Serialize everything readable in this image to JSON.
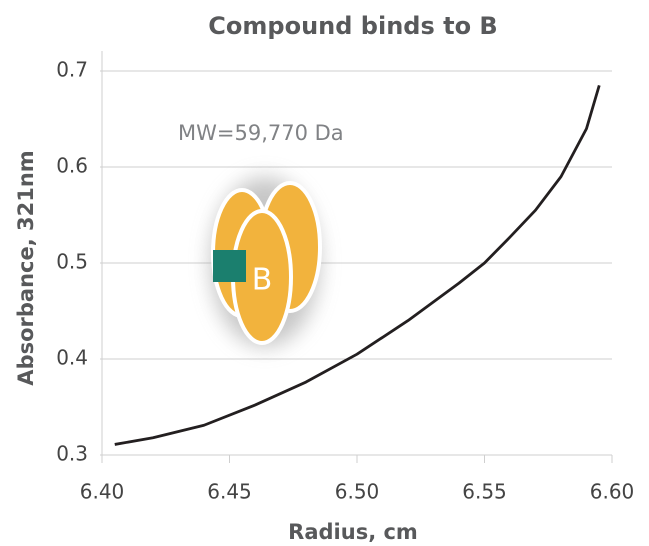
{
  "chart_data": {
    "type": "line",
    "title": "Compound binds to B",
    "x_label": "Radius, cm",
    "y_label": "Absorbance, 321nm",
    "x": [
      6.405,
      6.42,
      6.44,
      6.46,
      6.48,
      6.5,
      6.52,
      6.54,
      6.55,
      6.56,
      6.57,
      6.58,
      6.59,
      6.595
    ],
    "series": [
      {
        "color": "#231f20",
        "values": [
          0.311,
          0.318,
          0.331,
          0.352,
          0.376,
          0.405,
          0.44,
          0.479,
          0.5,
          0.527,
          0.555,
          0.59,
          0.64,
          0.685
        ]
      }
    ],
    "xlim": [
      6.4,
      6.6
    ],
    "xticks": [
      {
        "value": 6.4,
        "label": "6.40"
      },
      {
        "value": 6.45,
        "label": "6.45"
      },
      {
        "value": 6.5,
        "label": "6.50"
      },
      {
        "value": 6.55,
        "label": "6.55"
      },
      {
        "value": 6.6,
        "label": "6.60"
      }
    ],
    "ylim": [
      0.3,
      0.7
    ],
    "yticks": [
      0.3,
      0.4,
      0.5,
      0.6,
      0.7
    ],
    "grid": true,
    "annotations": [
      "MW=59,770 Da",
      "B"
    ]
  }
}
